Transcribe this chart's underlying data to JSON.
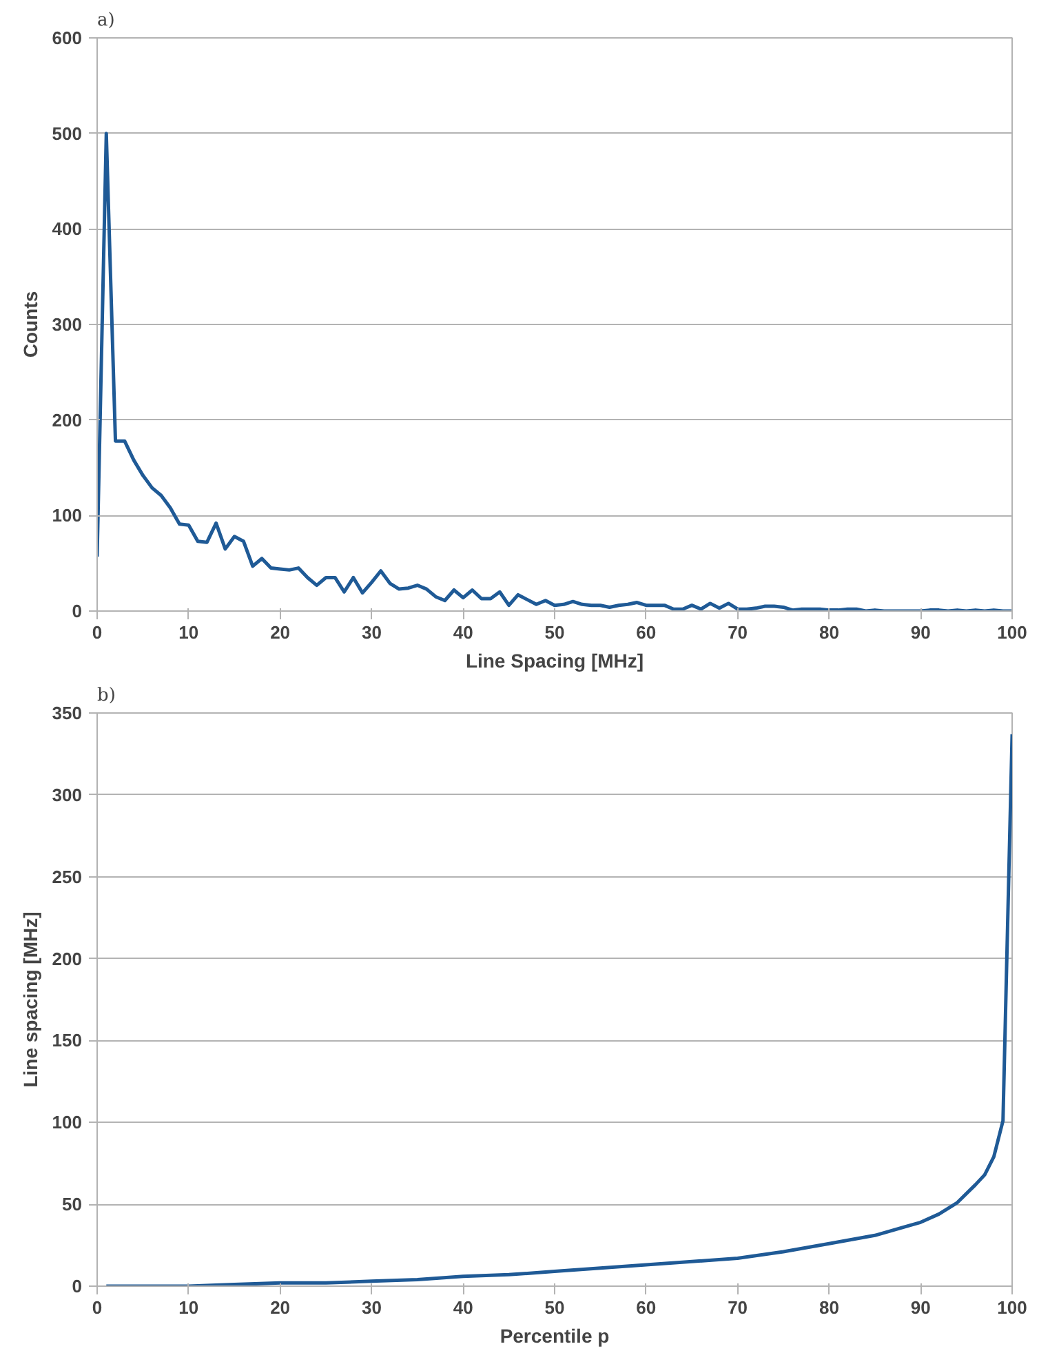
{
  "chart_data": [
    {
      "type": "line",
      "title": "a)",
      "xlabel": "Line Spacing [MHz]",
      "ylabel": "Counts",
      "xlim": [
        0,
        100
      ],
      "xticks": [
        0,
        10,
        20,
        30,
        40,
        50,
        60,
        70,
        80,
        90,
        100
      ],
      "ylim": [
        0,
        600
      ],
      "yticks": [
        0,
        100,
        200,
        300,
        400,
        500,
        600
      ],
      "grid": "y",
      "x": [
        0,
        1,
        2,
        3,
        4,
        5,
        6,
        7,
        8,
        9,
        10,
        11,
        12,
        13,
        14,
        15,
        16,
        17,
        18,
        19,
        20,
        21,
        22,
        23,
        24,
        25,
        26,
        27,
        28,
        29,
        30,
        31,
        32,
        33,
        34,
        35,
        36,
        37,
        38,
        39,
        40,
        41,
        42,
        43,
        44,
        45,
        46,
        47,
        48,
        49,
        50,
        51,
        52,
        53,
        54,
        55,
        56,
        57,
        58,
        59,
        60,
        61,
        62,
        63,
        64,
        65,
        66,
        67,
        68,
        69,
        70,
        71,
        72,
        73,
        74,
        75,
        76,
        77,
        78,
        79,
        80,
        81,
        82,
        83,
        84,
        85,
        86,
        87,
        88,
        89,
        90,
        91,
        92,
        93,
        94,
        95,
        96,
        97,
        98,
        99,
        100
      ],
      "series": [
        {
          "color": "#1f5a96",
          "values": [
            57,
            500,
            178,
            178,
            158,
            142,
            129,
            121,
            108,
            91,
            90,
            73,
            72,
            92,
            65,
            78,
            73,
            47,
            55,
            45,
            44,
            43,
            45,
            35,
            27,
            35,
            35,
            20,
            35,
            19,
            30,
            42,
            29,
            23,
            24,
            27,
            23,
            15,
            11,
            22,
            14,
            22,
            13,
            13,
            20,
            6,
            17,
            12,
            7,
            11,
            6,
            7,
            10,
            7,
            6,
            6,
            4,
            6,
            7,
            9,
            6,
            6,
            6,
            2,
            2,
            6,
            2,
            8,
            3,
            8,
            2,
            2,
            3,
            5,
            5,
            4,
            1,
            2,
            2,
            2,
            1,
            1,
            2,
            2,
            0,
            1,
            0,
            0,
            0,
            0,
            0,
            1,
            1,
            0,
            1,
            0,
            1,
            0,
            1,
            0,
            0
          ]
        }
      ]
    },
    {
      "type": "line",
      "title": "b)",
      "xlabel": "Percentile p",
      "ylabel": "Line spacing [MHz]",
      "xlim": [
        0,
        100
      ],
      "xticks": [
        0,
        10,
        20,
        30,
        40,
        50,
        60,
        70,
        80,
        90,
        100
      ],
      "ylim": [
        0,
        350
      ],
      "yticks": [
        0,
        50,
        100,
        150,
        200,
        250,
        300,
        350
      ],
      "grid": "y",
      "x": [
        1,
        5,
        10,
        15,
        20,
        25,
        30,
        35,
        40,
        45,
        50,
        55,
        60,
        65,
        70,
        75,
        80,
        85,
        90,
        92,
        94,
        96,
        97,
        98,
        99,
        100
      ],
      "series": [
        {
          "color": "#1f5a96",
          "values": [
            0,
            0,
            0,
            1,
            2,
            2,
            3,
            4,
            6,
            7,
            9,
            11,
            13,
            15,
            17,
            21,
            26,
            31,
            39,
            44,
            51,
            62,
            68,
            79,
            101,
            337
          ]
        }
      ]
    }
  ]
}
